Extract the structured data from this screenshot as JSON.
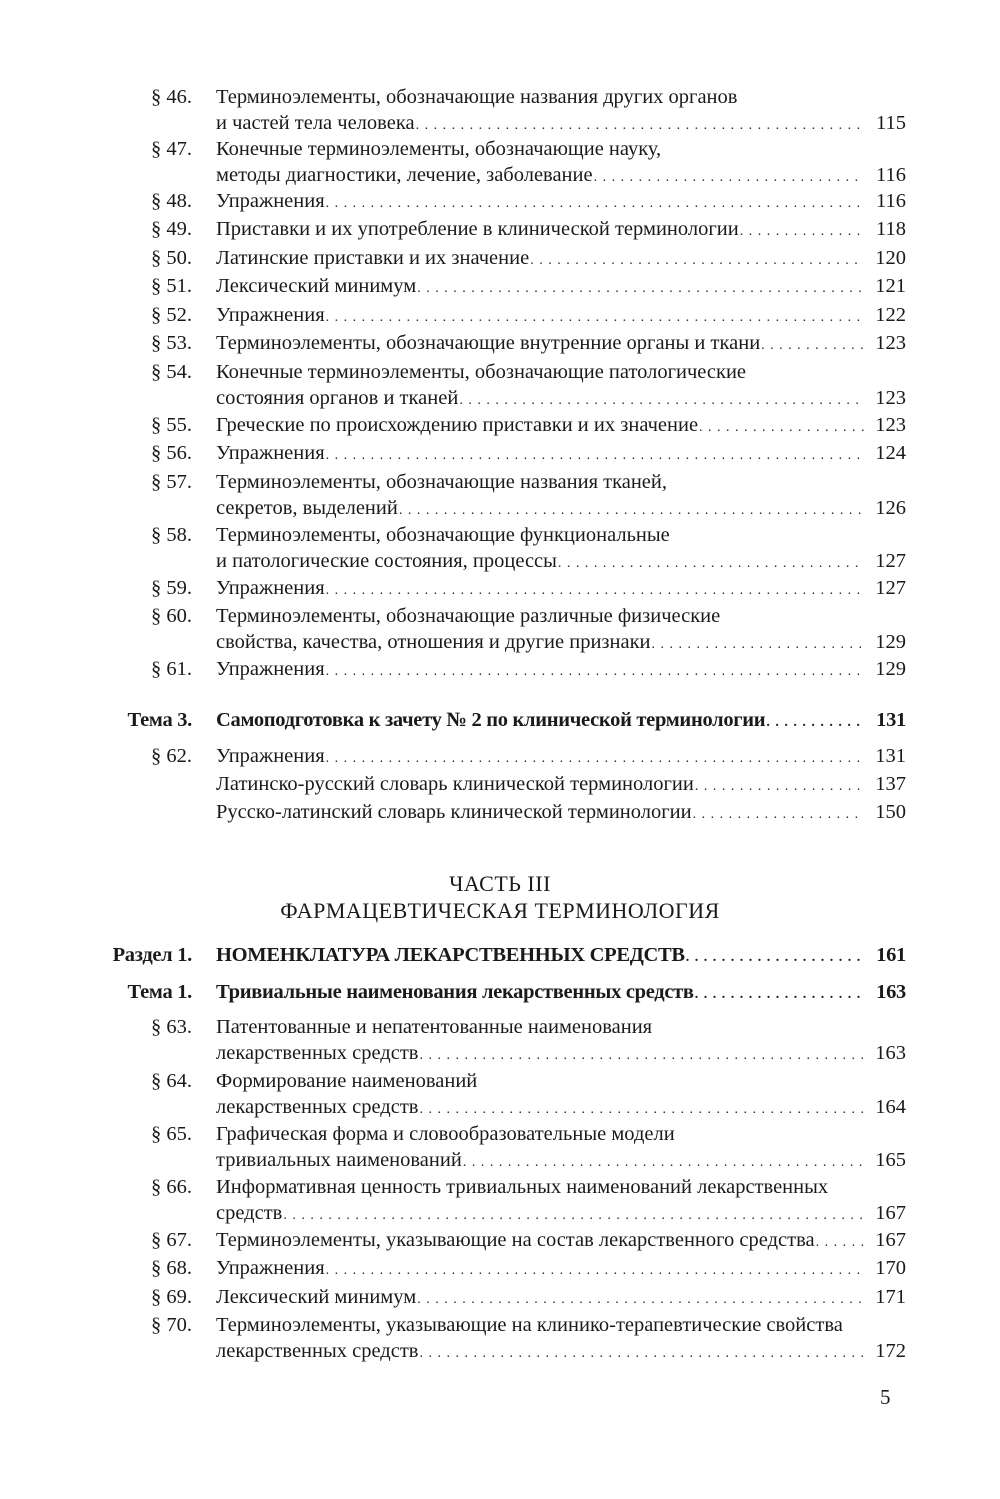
{
  "toc_top": [
    {
      "num": "§ 46.",
      "lines": [
        "Терминоэлементы, обозначающие названия других органов",
        "и частей тела человека"
      ],
      "page": "115"
    },
    {
      "num": "§ 47.",
      "lines": [
        "Конечные терминоэлементы, обозначающие науку,",
        "методы диагностики, лечение, заболевание"
      ],
      "page": "116"
    },
    {
      "num": "§ 48.",
      "lines": [
        "Упражнения"
      ],
      "page": "116"
    },
    {
      "num": "§ 49.",
      "lines": [
        "Приставки и их употребление в клинической терминологии"
      ],
      "page": "118"
    },
    {
      "num": "§ 50.",
      "lines": [
        "Латинские приставки и их значение"
      ],
      "page": "120"
    },
    {
      "num": "§ 51.",
      "lines": [
        "Лексический минимум"
      ],
      "page": "121"
    },
    {
      "num": "§ 52.",
      "lines": [
        "Упражнения"
      ],
      "page": "122"
    },
    {
      "num": "§ 53.",
      "lines": [
        "Терминоэлементы, обозначающие внутренние органы и ткани"
      ],
      "page": "123"
    },
    {
      "num": "§ 54.",
      "lines": [
        "Конечные терминоэлементы, обозначающие патологические",
        "состояния органов и тканей"
      ],
      "page": "123"
    },
    {
      "num": "§ 55.",
      "lines": [
        "Греческие по происхождению приставки и их значение"
      ],
      "page": "123"
    },
    {
      "num": "§ 56.",
      "lines": [
        "Упражнения"
      ],
      "page": "124"
    },
    {
      "num": "§ 57.",
      "lines": [
        "Терминоэлементы, обозначающие названия тканей,",
        "секретов, выделений"
      ],
      "page": "126"
    },
    {
      "num": "§ 58.",
      "lines": [
        "Терминоэлементы, обозначающие функциональные",
        "и патологические состояния, процессы"
      ],
      "page": "127"
    },
    {
      "num": "§ 59.",
      "lines": [
        "Упражнения"
      ],
      "page": "127"
    },
    {
      "num": "§ 60.",
      "lines": [
        "Терминоэлементы, обозначающие различные физические",
        "свойства, качества, отношения и другие признаки"
      ],
      "page": "129"
    },
    {
      "num": "§ 61.",
      "lines": [
        "Упражнения"
      ],
      "page": "129"
    },
    {
      "num": "Тема 3.",
      "lines": [
        "Самоподготовка к зачету № 2 по клинической терминологии"
      ],
      "page": "131",
      "bold": true
    },
    {
      "num": "§ 62.",
      "lines": [
        "Упражнения"
      ],
      "page": "131"
    },
    {
      "num": "",
      "lines": [
        "Латинско-русский словарь клинической терминологии"
      ],
      "page": "137"
    },
    {
      "num": "",
      "lines": [
        "Русско-латинский словарь  клинической терминологии"
      ],
      "page": "150"
    }
  ],
  "part": {
    "title": "ЧАСТЬ III",
    "subtitle": "ФАРМАЦЕВТИЧЕСКАЯ ТЕРМИНОЛОГИЯ"
  },
  "toc_bottom": [
    {
      "num": "Раздел 1.",
      "lines": [
        "НОМЕНКЛАТУРА ЛЕКАРСТВЕННЫХ СРЕДСТВ"
      ],
      "page": "161",
      "bold": true
    },
    {
      "num": "Тема 1.",
      "lines": [
        "Тривиальные наименования лекарственных средств"
      ],
      "page": "163",
      "bold": true
    },
    {
      "num": "§ 63.",
      "lines": [
        "Патентованные и непатентованные наименования",
        "лекарственных средств"
      ],
      "page": "163"
    },
    {
      "num": "§ 64.",
      "lines": [
        "Формирование наименований",
        "лекарственных средств"
      ],
      "page": "164"
    },
    {
      "num": "§ 65.",
      "lines": [
        "Графическая форма и словообразовательные модели",
        "тривиальных наименований"
      ],
      "page": "165"
    },
    {
      "num": "§ 66.",
      "lines": [
        "Информативная ценность тривиальных наименований лекарственных",
        "средств"
      ],
      "page": "167"
    },
    {
      "num": "§ 67.",
      "lines": [
        "Терминоэлементы, указывающие на состав лекарственного средства"
      ],
      "page": "167"
    },
    {
      "num": "§ 68.",
      "lines": [
        "Упражнения"
      ],
      "page": "170"
    },
    {
      "num": "§ 69.",
      "lines": [
        "Лексический минимум"
      ],
      "page": "171"
    },
    {
      "num": "§ 70.",
      "lines": [
        "Терминоэлементы, указывающие на клинико-терапевтические свойства",
        "лекарственных средств"
      ],
      "page": "172"
    }
  ],
  "page_number": "5"
}
